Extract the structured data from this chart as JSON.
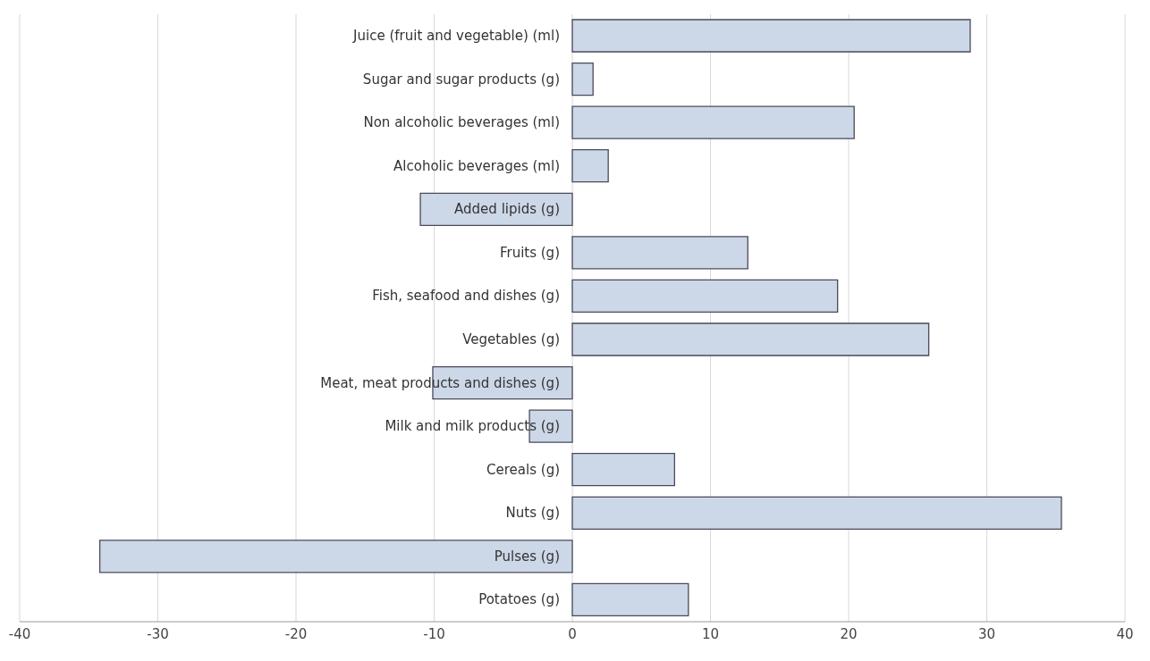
{
  "chart_data": {
    "type": "bar",
    "orientation": "horizontal",
    "categories": [
      "Juice (fruit and vegetable) (ml)",
      "Sugar and sugar products (g)",
      "Non alcoholic beverages (ml)",
      "Alcoholic beverages (ml)",
      "Added lipids (g)",
      "Fruits (g)",
      "Fish, seafood and dishes (g)",
      "Vegetables (g)",
      "Meat, meat products and dishes (g)",
      "Milk and milk products (g)",
      "Cereals (g)",
      "Nuts (g)",
      "Pulses (g)",
      "Potatoes (g)"
    ],
    "values": [
      28.8,
      1.5,
      20.4,
      2.6,
      -11.0,
      12.7,
      19.2,
      25.8,
      -10.1,
      -3.1,
      7.4,
      35.4,
      -34.2,
      8.4
    ],
    "color": "#ccd8e8",
    "xlim": [
      -40,
      40
    ],
    "xticks": [
      -40,
      -30,
      -20,
      -10,
      0,
      10,
      20,
      30,
      40
    ],
    "grid": "x"
  }
}
